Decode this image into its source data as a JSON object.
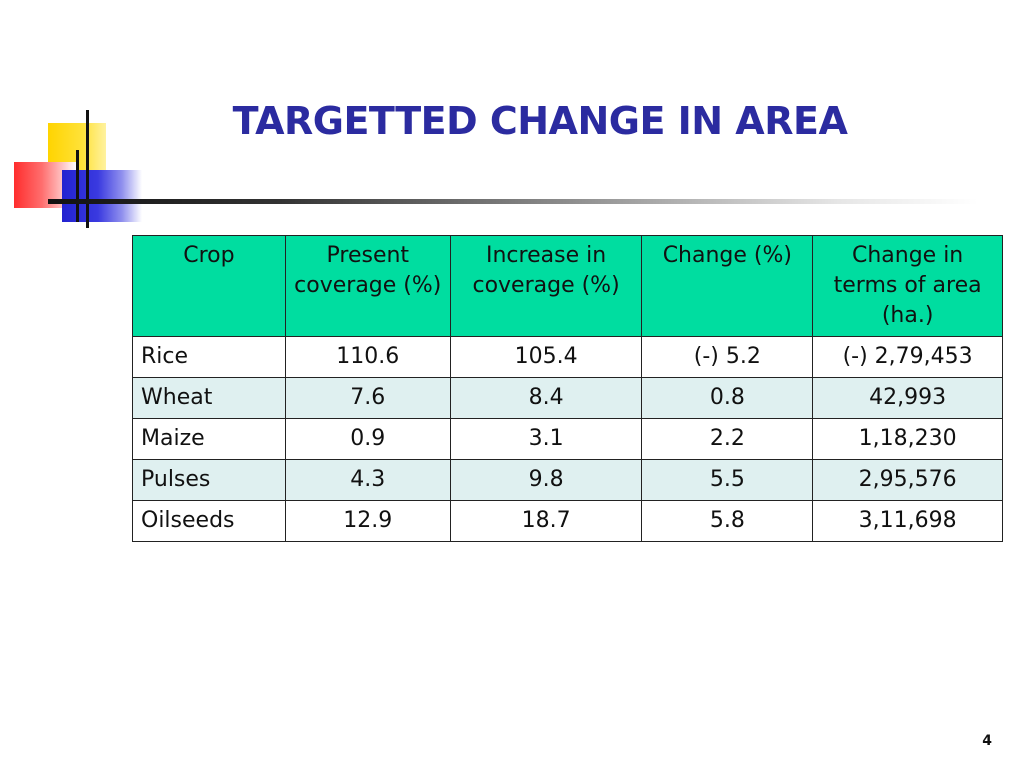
{
  "slide": {
    "title": "TARGETTED CHANGE IN AREA",
    "page_number": "4"
  },
  "table": {
    "headers": [
      "Crop",
      "Present coverage (%)",
      "Increase in coverage (%)",
      "Change (%)",
      "Change in terms of area (ha.)"
    ],
    "rows": [
      [
        "Rice",
        "110.6",
        "105.4",
        "(-) 5.2",
        "(-) 2,79,453"
      ],
      [
        "Wheat",
        "7.6",
        "8.4",
        "0.8",
        "42,993"
      ],
      [
        "Maize",
        "0.9",
        "3.1",
        "2.2",
        "1,18,230"
      ],
      [
        "Pulses",
        "4.3",
        "9.8",
        "5.5",
        "2,95,576"
      ],
      [
        "Oilseeds",
        "12.9",
        "18.7",
        "5.8",
        "3,11,698"
      ]
    ]
  },
  "colors": {
    "title": "#2b2ba0",
    "header_bg": "#00dda0",
    "row_alt_bg": "#dff0f0"
  }
}
